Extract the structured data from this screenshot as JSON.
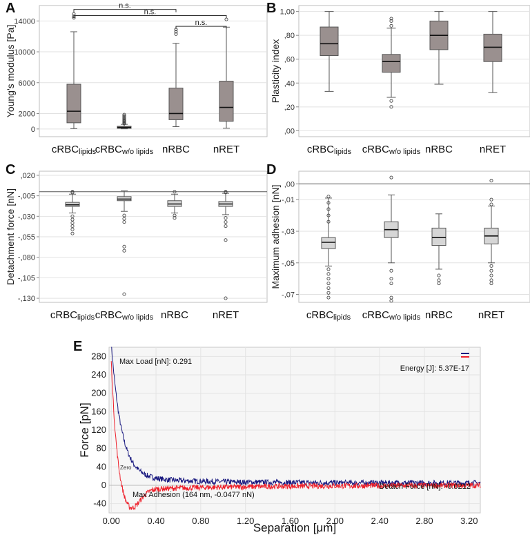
{
  "chart_data": [
    {
      "panel": "A",
      "type": "box",
      "ylabel": "Young's modulus [Pa]",
      "ylim": [
        -1000,
        16000
      ],
      "yticks": [
        0,
        2000,
        6000,
        10000,
        14000
      ],
      "ytick_labels": [
        "0",
        "2000",
        "6000",
        "10000",
        "14000"
      ],
      "categories": [
        {
          "main": "cRBC",
          "sub": "lipids"
        },
        {
          "main": "cRBC",
          "sub": "w/o lipids"
        },
        {
          "main": "nRBC",
          "sub": ""
        },
        {
          "main": "nRET",
          "sub": ""
        }
      ],
      "box_color": "#9a908f",
      "boxes": [
        {
          "min": 50,
          "q1": 800,
          "median": 2300,
          "q3": 5800,
          "max": 12600,
          "outliers": [
            14400,
            14600,
            14900
          ]
        },
        {
          "min": 20,
          "q1": 80,
          "median": 200,
          "q3": 350,
          "max": 600,
          "outliers": [
            700,
            800,
            900,
            1000,
            1100,
            1250,
            1400,
            1550,
            1700,
            1850
          ]
        },
        {
          "min": 300,
          "q1": 1200,
          "median": 2000,
          "q3": 5300,
          "max": 11100,
          "outliers": [
            12300,
            12600,
            12900
          ]
        },
        {
          "min": 100,
          "q1": 1000,
          "median": 2800,
          "q3": 6200,
          "max": 13200,
          "outliers": [
            14200
          ]
        }
      ],
      "comparisons": [
        {
          "from": 0,
          "to": 2,
          "level": 15500,
          "label": "n.s."
        },
        {
          "from": 0,
          "to": 3,
          "level": 14700,
          "label": "n.s."
        },
        {
          "from": 2,
          "to": 3,
          "level": 13300,
          "label": "n.s."
        }
      ],
      "reference_line": null
    },
    {
      "panel": "B",
      "type": "box",
      "ylabel": "Plasticity index",
      "ylim": [
        -0.05,
        1.05
      ],
      "yticks": [
        0,
        0.2,
        0.4,
        0.6,
        0.8,
        1.0
      ],
      "ytick_labels": [
        ",00",
        ",20",
        ",40",
        ",60",
        ",80",
        "1,00"
      ],
      "categories": [
        {
          "main": "cRBC",
          "sub": "lipids"
        },
        {
          "main": "cRBC",
          "sub": "w/o lipids"
        },
        {
          "main": "nRBC",
          "sub": ""
        },
        {
          "main": "nRET",
          "sub": ""
        }
      ],
      "box_color": "#9a908f",
      "boxes": [
        {
          "min": 0.33,
          "q1": 0.63,
          "median": 0.73,
          "q3": 0.87,
          "max": 1.0,
          "outliers": []
        },
        {
          "min": 0.28,
          "q1": 0.49,
          "median": 0.58,
          "q3": 0.64,
          "max": 0.86,
          "outliers": [
            0.25,
            0.2,
            0.88,
            0.92,
            0.94
          ]
        },
        {
          "min": 0.39,
          "q1": 0.68,
          "median": 0.8,
          "q3": 0.92,
          "max": 1.0,
          "outliers": []
        },
        {
          "min": 0.32,
          "q1": 0.58,
          "median": 0.7,
          "q3": 0.81,
          "max": 1.0,
          "outliers": []
        }
      ],
      "comparisons": [],
      "reference_line": null
    },
    {
      "panel": "C",
      "type": "box",
      "ylabel": "Detachment force [nN]",
      "ylim": [
        -0.135,
        0.025
      ],
      "yticks": [
        0.02,
        -0.005,
        -0.03,
        -0.055,
        -0.08,
        -0.105,
        -0.13
      ],
      "ytick_labels": [
        ",020",
        "-,005",
        "-,030",
        "-,055",
        "-,080",
        "-,105",
        "-,130"
      ],
      "categories": [
        {
          "main": "cRBC",
          "sub": "lipids"
        },
        {
          "main": "cRBC",
          "sub": "w/o lipids"
        },
        {
          "main": "nRBC",
          "sub": ""
        },
        {
          "main": "nRET",
          "sub": ""
        }
      ],
      "box_color": "#d6d6d6",
      "boxes": [
        {
          "min": -0.026,
          "q1": -0.018,
          "median": -0.016,
          "q3": -0.013,
          "max": -0.003,
          "outliers": [
            -0.03,
            -0.034,
            -0.038,
            -0.042,
            -0.046,
            -0.051,
            -0.001,
            0.0
          ]
        },
        {
          "min": -0.024,
          "q1": -0.011,
          "median": -0.009,
          "q3": -0.006,
          "max": 0.001,
          "outliers": [
            -0.029,
            -0.033,
            -0.037,
            -0.067,
            -0.072,
            -0.125
          ]
        },
        {
          "min": -0.026,
          "q1": -0.018,
          "median": -0.015,
          "q3": -0.011,
          "max": -0.003,
          "outliers": [
            -0.029,
            -0.032,
            0.0
          ]
        },
        {
          "min": -0.028,
          "q1": -0.018,
          "median": -0.015,
          "q3": -0.012,
          "max": -0.002,
          "outliers": [
            -0.032,
            -0.037,
            -0.042,
            -0.059,
            -0.13,
            0.0,
            -0.001
          ]
        }
      ],
      "comparisons": [],
      "reference_line": 0.0
    },
    {
      "panel": "D",
      "type": "box",
      "ylabel": "Maximum adhesion [nN]",
      "ylim": [
        -0.075,
        0.008
      ],
      "yticks": [
        0.0,
        -0.01,
        -0.03,
        -0.05,
        -0.07
      ],
      "ytick_labels": [
        ",00",
        "-,01",
        "-,03",
        "-,05",
        "-,07"
      ],
      "categories": [
        {
          "main": "cRBC",
          "sub": "lipids"
        },
        {
          "main": "cRBC",
          "sub": "w/o lipids"
        },
        {
          "main": "nRBC",
          "sub": ""
        },
        {
          "main": "nRET",
          "sub": ""
        }
      ],
      "box_color": "#d6d6d6",
      "boxes": [
        {
          "min": -0.052,
          "q1": -0.041,
          "median": -0.037,
          "q3": -0.034,
          "max": -0.009,
          "outliers": [
            -0.054,
            -0.057,
            -0.06,
            -0.063,
            -0.066,
            -0.069,
            -0.072,
            -0.008,
            -0.012,
            -0.016,
            -0.02,
            -0.024
          ]
        },
        {
          "min": -0.05,
          "q1": -0.034,
          "median": -0.029,
          "q3": -0.024,
          "max": -0.007,
          "outliers": [
            -0.055,
            -0.06,
            -0.063,
            -0.072,
            -0.074,
            0.004
          ]
        },
        {
          "min": -0.054,
          "q1": -0.039,
          "median": -0.034,
          "q3": -0.028,
          "max": -0.019,
          "outliers": [
            -0.058,
            -0.061,
            -0.063
          ]
        },
        {
          "min": -0.05,
          "q1": -0.038,
          "median": -0.033,
          "q3": -0.028,
          "max": -0.014,
          "outliers": [
            -0.052,
            -0.055,
            -0.058,
            -0.061,
            -0.063,
            -0.01,
            -0.013,
            0.002
          ]
        }
      ],
      "comparisons": [],
      "reference_line": 0.0
    },
    {
      "panel": "E",
      "type": "line",
      "xlabel": "Separation [μm]",
      "ylabel": "Force [pN]",
      "xlim": [
        -0.02,
        3.3
      ],
      "ylim": [
        -60,
        300
      ],
      "xticks": [
        0.0,
        0.4,
        0.8,
        1.2,
        1.6,
        2.0,
        2.4,
        2.8,
        3.2
      ],
      "xtick_labels": [
        "0.00",
        "0.40",
        "0.80",
        "1.20",
        "1.60",
        "2.00",
        "2.40",
        "2.80",
        "3.20"
      ],
      "yticks": [
        -40,
        0,
        40,
        80,
        120,
        160,
        200,
        240,
        280
      ],
      "ytick_labels": [
        "-40",
        "0",
        "40",
        "80",
        "120",
        "160",
        "200",
        "240",
        "280"
      ],
      "series": [
        {
          "name": "approach",
          "color": "#1a1a80",
          "peak": 290,
          "decay": 0.09,
          "baseline": 5,
          "noise": 6
        },
        {
          "name": "retract",
          "color": "#ee1f2a",
          "peak": 291,
          "decay": 0.05,
          "adhesion_min": -47.7,
          "adhesion_at": 0.164,
          "baseline": 0,
          "noise": 6
        }
      ],
      "annotations": {
        "max_load": "Max Load [nN]: 0.291",
        "energy": "Energy [J]: 5.37E-17",
        "max_adhesion": "Max Adhesion (164 nm, -0.0477 nN)",
        "detach_force": "Detach Force [nN]: -0.0212",
        "zero_marker": "Zero"
      }
    }
  ]
}
